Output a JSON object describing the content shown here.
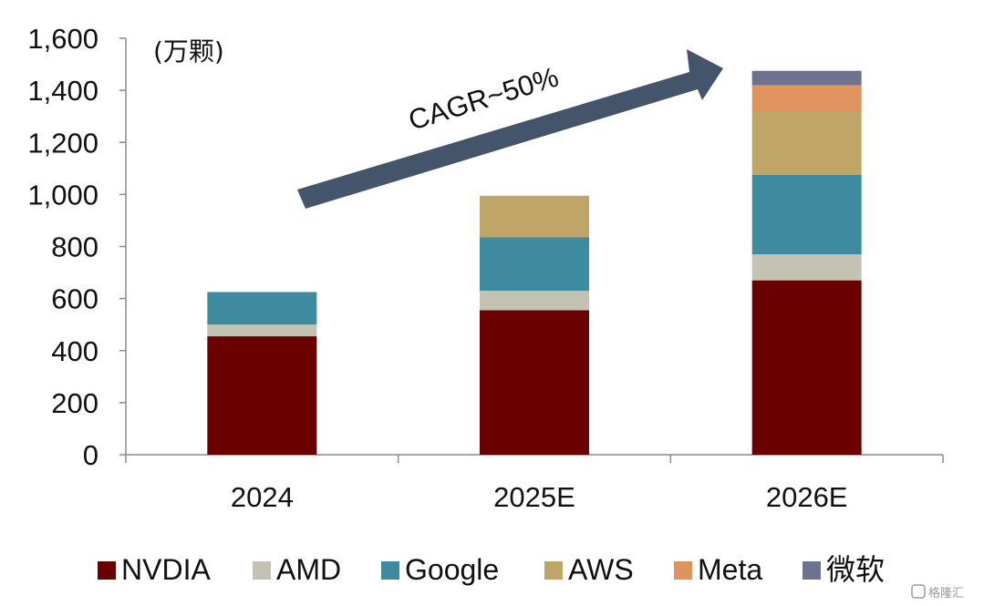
{
  "chart_data": {
    "type": "bar",
    "stacked": true,
    "title": "",
    "unit_label": "(万颗)",
    "xlabel": "",
    "ylabel": "",
    "ylim": [
      0,
      1600
    ],
    "yticks": [
      0,
      200,
      400,
      600,
      800,
      1000,
      1200,
      1400,
      1600
    ],
    "ytick_labels": [
      "0",
      "200",
      "400",
      "600",
      "800",
      "1,000",
      "1,200",
      "1,400",
      "1,600"
    ],
    "grid": false,
    "categories": [
      "2024",
      "2025E",
      "2026E"
    ],
    "series": [
      {
        "name": "NVDIA",
        "color": "#6b0000",
        "values": [
          455,
          555,
          670
        ]
      },
      {
        "name": "AMD",
        "color": "#c4c3b3",
        "values": [
          45,
          75,
          100
        ]
      },
      {
        "name": "Google",
        "color": "#3e8a9e",
        "values": [
          125,
          205,
          305
        ]
      },
      {
        "name": "AWS",
        "color": "#c0a568",
        "values": [
          0,
          160,
          245
        ]
      },
      {
        "name": "Meta",
        "color": "#e0935e",
        "values": [
          0,
          0,
          100
        ]
      },
      {
        "name": "微软",
        "color": "#6b7390",
        "values": [
          0,
          0,
          55
        ]
      }
    ],
    "legend_position": "bottom",
    "annotation": {
      "text": "CAGR~50%",
      "color": "#44546a"
    }
  },
  "watermark": {
    "text": "格隆汇"
  }
}
